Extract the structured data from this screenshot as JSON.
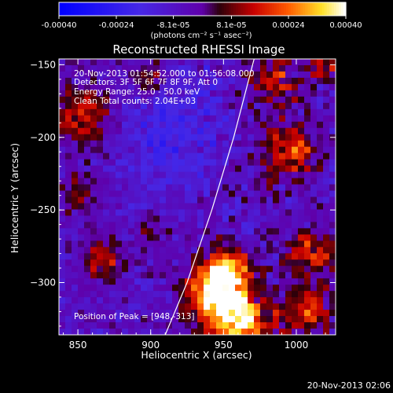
{
  "chart_data": {
    "type": "heatmap",
    "title": "Reconstructed RHESSI Image",
    "xlabel": "Heliocentric X (arcsec)",
    "ylabel": "Heliocentric Y (arcsec)",
    "xlim": [
      837,
      1027
    ],
    "ylim": [
      -336,
      -146
    ],
    "x_ticks": [
      850,
      900,
      950,
      1000
    ],
    "y_ticks": [
      -150,
      -200,
      -250,
      -300
    ],
    "colorbar": {
      "ticks": [
        "-0.00040",
        "-0.00024",
        "-8.1e-05",
        "8.1e-05",
        "0.00024",
        "0.00040"
      ],
      "tick_values": [
        -0.0004,
        -0.00024,
        -8.1e-05,
        8.1e-05,
        0.00024,
        0.0004
      ],
      "range": [
        -0.0004,
        0.0004
      ],
      "unit_label": "(photons cm⁻² s⁻¹ asec⁻²)",
      "colormap": "blue-purple-red-yellow-white"
    },
    "annotations": {
      "time_range": "20-Nov-2013 01:54:52.000 to 01:56:08.000",
      "detectors": "Detectors: 3F 5F 6F 7F 8F 9F, Att 0",
      "energy": "Energy Range: 25.0 - 50.0 keV",
      "method": "Clean     Total counts: 2.04E+03",
      "peak": "Position of Peak = [948,-313]"
    },
    "peak": [
      948,
      -313
    ],
    "limb_curve": [
      [
        910,
        -336
      ],
      [
        925,
        -300
      ],
      [
        942,
        -250
      ],
      [
        957,
        -200
      ],
      [
        971,
        -146
      ]
    ]
  },
  "footer": {
    "timestamp": "20-Nov-2013 02:06"
  }
}
